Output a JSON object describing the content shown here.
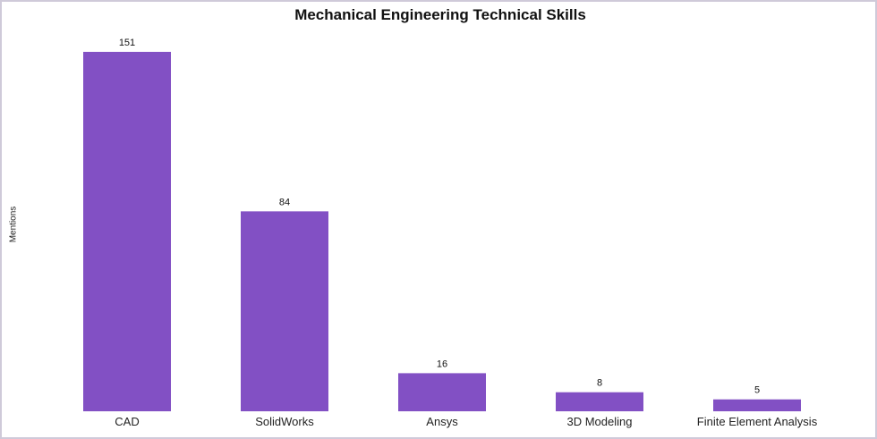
{
  "chart_data": {
    "type": "bar",
    "title": "Mechanical Engineering Technical Skills",
    "xlabel": "",
    "ylabel": "Mentions",
    "categories": [
      "CAD",
      "SolidWorks",
      "Ansys",
      "3D Modeling",
      "Finite Element Analysis"
    ],
    "values": [
      151,
      84,
      16,
      8,
      5
    ],
    "ylim": [
      0,
      151
    ],
    "grid": false,
    "data_labels": true,
    "bar_color": "#8250c4"
  }
}
